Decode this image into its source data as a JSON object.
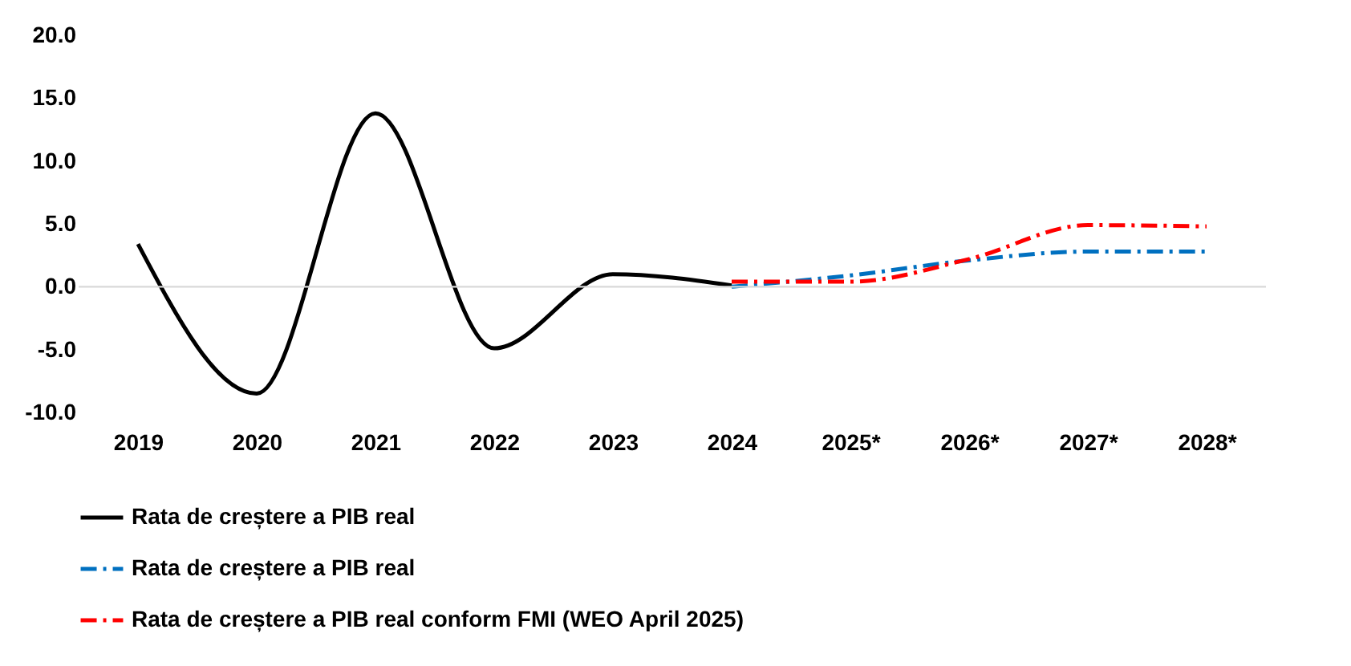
{
  "chart_data": {
    "type": "line",
    "categories": [
      "2019",
      "2020",
      "2021",
      "2022",
      "2023",
      "2024",
      "2025*",
      "2026*",
      "2027*",
      "2028*"
    ],
    "series": [
      {
        "name": "Rata de creștere a PIB real",
        "color": "#000000",
        "line_style": "solid",
        "values": [
          3.4,
          -8.5,
          13.8,
          -4.9,
          1.0,
          0.1,
          null,
          null,
          null,
          null
        ]
      },
      {
        "name": "Rata de creștere a PIB real",
        "color": "#0070c0",
        "line_style": "dashed",
        "values": [
          null,
          null,
          null,
          null,
          null,
          0.0,
          0.9,
          2.1,
          2.8,
          2.8
        ]
      },
      {
        "name": "Rata de creștere a PIB real conform FMI (WEO April 2025)",
        "color": "#ff0000",
        "line_style": "dashed",
        "values": [
          null,
          null,
          null,
          null,
          null,
          0.4,
          0.4,
          2.2,
          4.9,
          4.8
        ]
      }
    ],
    "ylim": [
      -10,
      20
    ],
    "yticks": [
      {
        "value": -10,
        "label": "-10.0"
      },
      {
        "value": -5,
        "label": "-5.0"
      },
      {
        "value": 0,
        "label": "0.0"
      },
      {
        "value": 5,
        "label": "5.0"
      },
      {
        "value": 10,
        "label": "10.0"
      },
      {
        "value": 15,
        "label": "15.0"
      },
      {
        "value": 20,
        "label": "20.0"
      }
    ],
    "ref_lines": [
      {
        "axis": "y",
        "value": 0,
        "color": "#d9d9d9"
      }
    ],
    "grid": false,
    "legend": "bottom",
    "marker": "none"
  }
}
